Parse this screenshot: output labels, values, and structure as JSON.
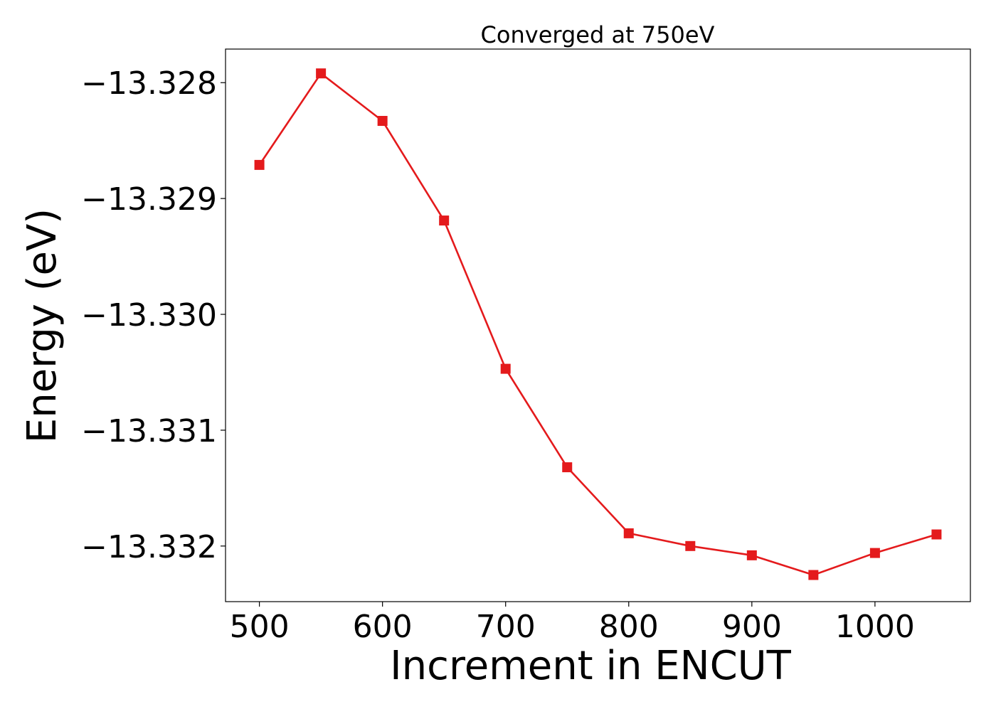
{
  "chart_data": {
    "type": "line",
    "title": "Converged at 750eV",
    "xlabel": "Increment in ENCUT",
    "ylabel": "Energy (eV)",
    "xlim": [
      472.5,
      1077.5
    ],
    "ylim": [
      -13.33248,
      -13.32771
    ],
    "x_ticks": [
      500,
      600,
      700,
      800,
      900,
      1000
    ],
    "x_tick_labels": [
      "500",
      "600",
      "700",
      "800",
      "900",
      "1000"
    ],
    "y_ticks": [
      -13.328,
      -13.329,
      -13.33,
      -13.331,
      -13.332
    ],
    "y_tick_labels": [
      "−13.328",
      "−13.329",
      "−13.330",
      "−13.331",
      "−13.332"
    ],
    "grid": false,
    "series": [
      {
        "color": "#e41a1c",
        "marker": "square",
        "x": [
          500,
          550,
          600,
          650,
          700,
          750,
          800,
          850,
          900,
          950,
          1000,
          1050
        ],
        "y": [
          -13.32871,
          -13.32792,
          -13.32833,
          -13.32919,
          -13.33047,
          -13.33132,
          -13.33189,
          -13.332,
          -13.33208,
          -13.33225,
          -13.33206,
          -13.3319
        ]
      }
    ]
  }
}
